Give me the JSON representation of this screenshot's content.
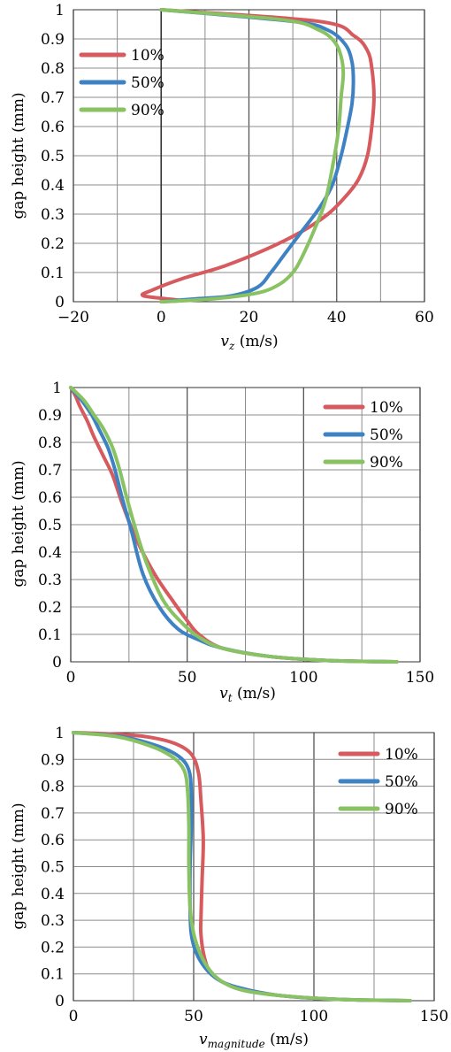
{
  "chart_data": [
    {
      "type": "line",
      "xlabel": "v",
      "xlabel_sub": "z",
      "xlabel_unit": " (m/s)",
      "ylabel": "gap height (mm)",
      "xlim": [
        -20,
        60
      ],
      "ylim": [
        0,
        1
      ],
      "xticks": [
        -20,
        0,
        20,
        40,
        60
      ],
      "xtick_labels": [
        "−20",
        "0",
        "20",
        "40",
        "60"
      ],
      "xminor_step": 10,
      "yticks": [
        0,
        0.1,
        0.2,
        0.3,
        0.4,
        0.5,
        0.6,
        0.7,
        0.8,
        0.9,
        1
      ],
      "ytick_labels": [
        "0",
        "0.1",
        "0.2",
        "0.3",
        "0.4",
        "0.5",
        "0.6",
        "0.7",
        "0.8",
        "0.9",
        "1"
      ],
      "grid": true,
      "legend_position": "left",
      "series": [
        {
          "name": "10%",
          "color": "#d65a5e",
          "x": [
            0,
            4,
            -4,
            -2,
            5,
            14,
            24,
            32,
            38,
            42,
            45,
            47,
            48,
            48.5,
            48,
            47,
            44,
            36,
            0
          ],
          "y": [
            0,
            0.005,
            0.02,
            0.04,
            0.08,
            0.12,
            0.18,
            0.24,
            0.3,
            0.36,
            0.42,
            0.5,
            0.6,
            0.7,
            0.8,
            0.86,
            0.91,
            0.96,
            1
          ]
        },
        {
          "name": "50%",
          "color": "#3e82c4",
          "x": [
            0,
            8,
            16,
            22,
            25,
            28,
            32,
            36,
            39,
            41,
            42.5,
            43.5,
            43.8,
            43.5,
            42,
            38,
            30,
            0
          ],
          "y": [
            0,
            0.01,
            0.02,
            0.05,
            0.1,
            0.16,
            0.24,
            0.32,
            0.4,
            0.5,
            0.6,
            0.68,
            0.75,
            0.82,
            0.88,
            0.93,
            0.96,
            1
          ]
        },
        {
          "name": "90%",
          "color": "#89c262",
          "x": [
            0,
            12,
            22,
            27,
            30,
            32,
            35,
            37.5,
            39.5,
            40.5,
            41,
            41.5,
            41,
            39.5,
            36,
            28,
            0
          ],
          "y": [
            0,
            0.01,
            0.03,
            0.06,
            0.1,
            0.15,
            0.25,
            0.35,
            0.5,
            0.6,
            0.7,
            0.78,
            0.84,
            0.89,
            0.93,
            0.965,
            1
          ]
        }
      ]
    },
    {
      "type": "line",
      "xlabel": "v",
      "xlabel_sub": "t",
      "xlabel_unit": " (m/s)",
      "ylabel": "gap height (mm)",
      "xlim": [
        0,
        150
      ],
      "ylim": [
        0,
        1
      ],
      "xticks": [
        0,
        50,
        100,
        150
      ],
      "xtick_labels": [
        "0",
        "50",
        "100",
        "150"
      ],
      "xminor_step": 25,
      "yticks": [
        0,
        0.1,
        0.2,
        0.3,
        0.4,
        0.5,
        0.6,
        0.7,
        0.8,
        0.9,
        1
      ],
      "ytick_labels": [
        "0",
        "0.1",
        "0.2",
        "0.3",
        "0.4",
        "0.5",
        "0.6",
        "0.7",
        "0.8",
        "0.9",
        "1"
      ],
      "grid": true,
      "legend_position": "top-right",
      "series": [
        {
          "name": "10%",
          "color": "#d65a5e",
          "x": [
            140,
            110,
            85,
            65,
            55,
            50,
            44,
            36,
            28,
            22,
            18,
            14,
            10,
            7,
            4,
            2,
            0
          ],
          "y": [
            0,
            0.005,
            0.02,
            0.05,
            0.1,
            0.15,
            0.22,
            0.32,
            0.45,
            0.58,
            0.68,
            0.75,
            0.82,
            0.88,
            0.93,
            0.97,
            1
          ]
        },
        {
          "name": "50%",
          "color": "#3e82c4",
          "x": [
            140,
            110,
            85,
            65,
            55,
            46,
            38,
            31,
            26,
            22,
            19,
            16,
            12,
            9,
            5,
            2,
            0
          ],
          "y": [
            0,
            0.005,
            0.02,
            0.05,
            0.08,
            0.12,
            0.2,
            0.32,
            0.48,
            0.6,
            0.7,
            0.78,
            0.85,
            0.9,
            0.95,
            0.98,
            1
          ]
        },
        {
          "name": "90%",
          "color": "#89c262",
          "x": [
            140,
            110,
            85,
            65,
            55,
            48,
            40,
            33,
            28,
            24,
            21,
            18,
            14,
            10,
            6,
            2,
            0
          ],
          "y": [
            0,
            0.005,
            0.02,
            0.05,
            0.09,
            0.14,
            0.22,
            0.35,
            0.48,
            0.6,
            0.7,
            0.78,
            0.85,
            0.9,
            0.95,
            0.985,
            1
          ]
        }
      ]
    },
    {
      "type": "line",
      "xlabel": "v",
      "xlabel_sub": "magnitude",
      "xlabel_unit": " (m/s)",
      "ylabel": "gap height (mm)",
      "xlim": [
        0,
        150
      ],
      "ylim": [
        0,
        1
      ],
      "xticks": [
        0,
        50,
        100,
        150
      ],
      "xtick_labels": [
        "0",
        "50",
        "100",
        "150"
      ],
      "xminor_step": 25,
      "yticks": [
        0,
        0.1,
        0.2,
        0.3,
        0.4,
        0.5,
        0.6,
        0.7,
        0.8,
        0.9,
        1
      ],
      "ytick_labels": [
        "0",
        "0.1",
        "0.2",
        "0.3",
        "0.4",
        "0.5",
        "0.6",
        "0.7",
        "0.8",
        "0.9",
        "1"
      ],
      "grid": true,
      "legend_position": "top-right",
      "series": [
        {
          "name": "10%",
          "color": "#d65a5e",
          "x": [
            140,
            110,
            85,
            68,
            60,
            56,
            54,
            53,
            53,
            53.5,
            54,
            53,
            52,
            49,
            42,
            30,
            15,
            0
          ],
          "y": [
            0,
            0.005,
            0.02,
            0.05,
            0.08,
            0.12,
            0.18,
            0.25,
            0.3,
            0.45,
            0.6,
            0.75,
            0.85,
            0.92,
            0.96,
            0.985,
            0.995,
            1
          ]
        },
        {
          "name": "50%",
          "color": "#3e82c4",
          "x": [
            140,
            110,
            85,
            68,
            60,
            55,
            51,
            49,
            48.5,
            48.5,
            49,
            49,
            48,
            44,
            35,
            20,
            0
          ],
          "y": [
            0,
            0.005,
            0.02,
            0.05,
            0.08,
            0.12,
            0.18,
            0.25,
            0.35,
            0.5,
            0.65,
            0.78,
            0.86,
            0.91,
            0.95,
            0.985,
            1
          ]
        },
        {
          "name": "90%",
          "color": "#89c262",
          "x": [
            140,
            110,
            85,
            70,
            62,
            57,
            53,
            50,
            48.5,
            48,
            48,
            47.5,
            46,
            41,
            32,
            18,
            0
          ],
          "y": [
            0,
            0.005,
            0.02,
            0.04,
            0.07,
            0.11,
            0.17,
            0.25,
            0.35,
            0.5,
            0.65,
            0.78,
            0.86,
            0.91,
            0.95,
            0.985,
            1
          ]
        }
      ]
    }
  ]
}
